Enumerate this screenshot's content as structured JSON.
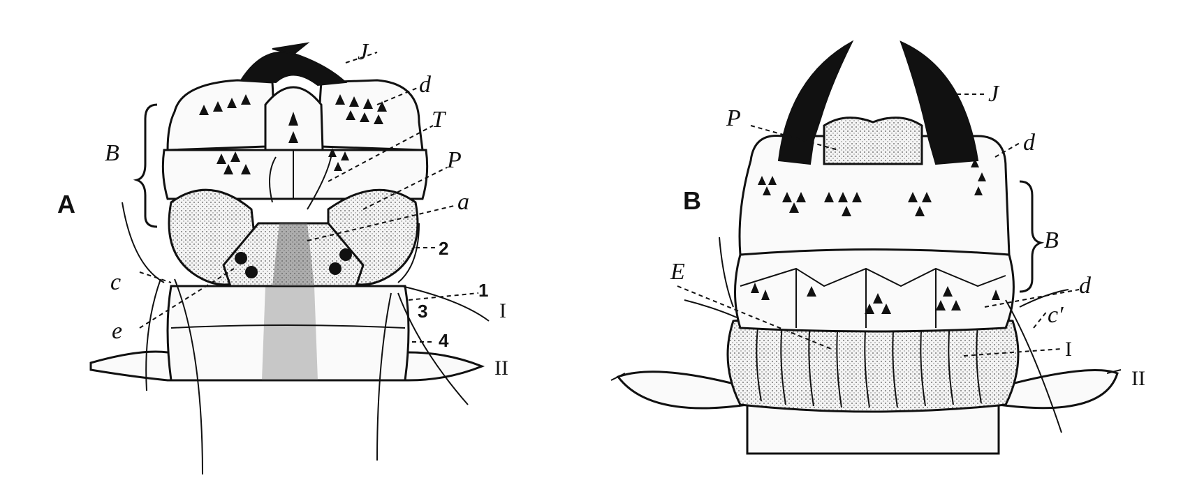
{
  "figure_a": {
    "panel_letter": "A",
    "labels": {
      "J": "J",
      "d": "d",
      "B": "B",
      "T": "T",
      "P": "P",
      "a": "a",
      "two": "2",
      "c": "c",
      "one": "1",
      "three": "3",
      "e": "e",
      "four": "4",
      "seg_I": "I",
      "seg_II": "II"
    }
  },
  "figure_b": {
    "panel_letter": "B",
    "labels": {
      "J": "J",
      "P": "P",
      "d_upper": "d",
      "B": "B",
      "E": "E",
      "d_lower": "d",
      "c_prime": "c′",
      "seg_I": "I",
      "seg_II": "II"
    }
  },
  "colors": {
    "ink": "#111111",
    "paper": "#ffffff"
  }
}
